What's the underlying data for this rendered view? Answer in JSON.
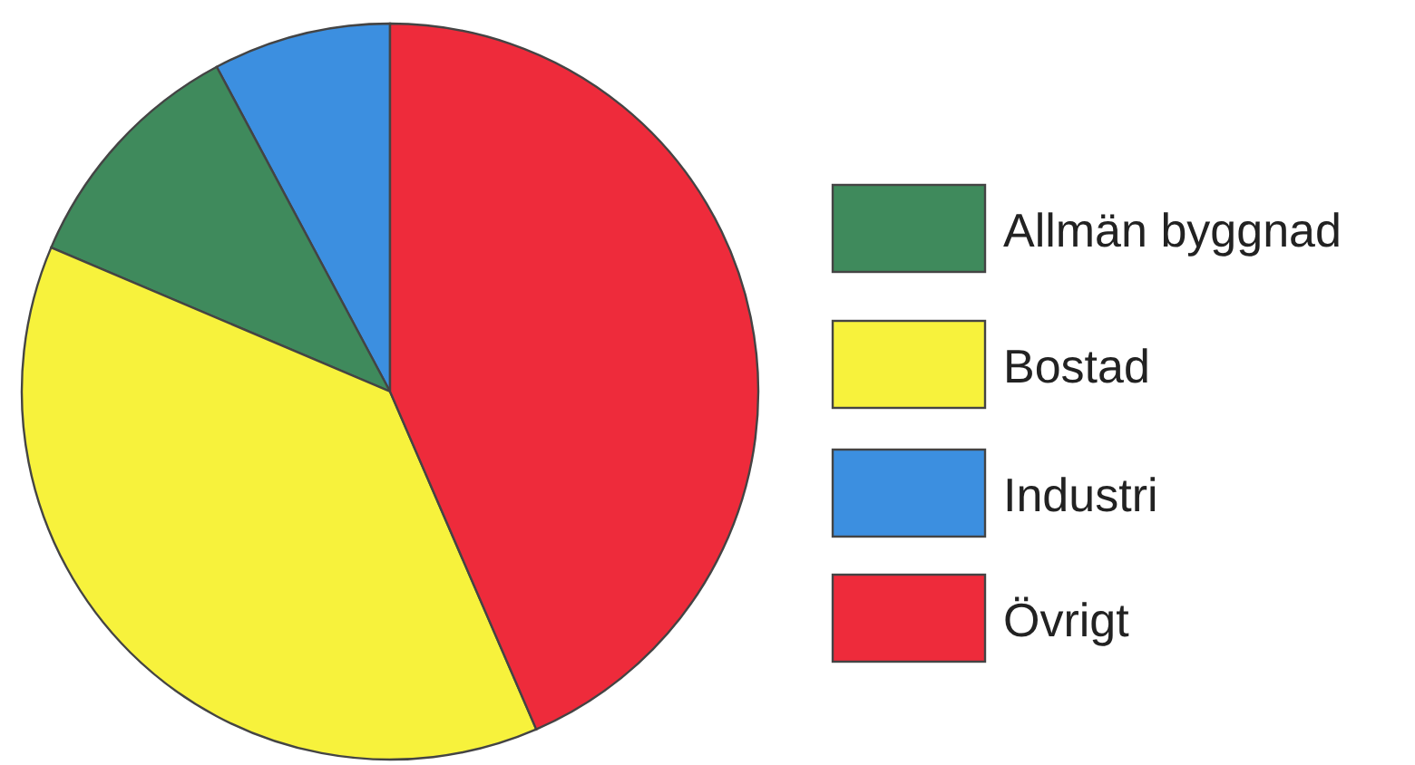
{
  "chart_data": {
    "type": "pie",
    "categories": [
      "Allmän byggnad",
      "Bostad",
      "Industri",
      "Övrigt"
    ],
    "values": [
      10.8,
      37.9,
      7.8,
      43.5
    ],
    "colors": [
      "#3f8a5c",
      "#f7f23c",
      "#3c8fe0",
      "#ee2b3b"
    ],
    "legend": "right"
  }
}
